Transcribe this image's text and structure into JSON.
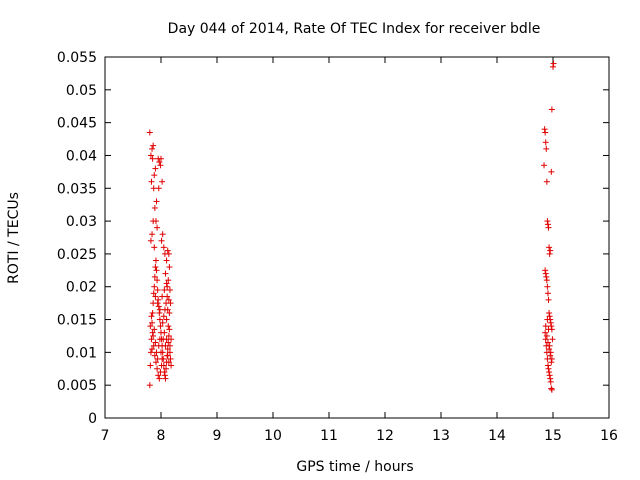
{
  "chart_data": {
    "type": "scatter",
    "title": "Day 044 of 2014, Rate Of TEC Index for receiver bdle",
    "xlabel": "GPS time / hours",
    "ylabel": "ROTI / TECUs",
    "xlim": [
      7,
      16
    ],
    "ylim": [
      0,
      0.055
    ],
    "xticks": [
      "7",
      "8",
      "9",
      "10",
      "11",
      "12",
      "13",
      "14",
      "15",
      "16"
    ],
    "yticks": [
      "0",
      "0.005",
      "0.01",
      "0.015",
      "0.02",
      "0.025",
      "0.03",
      "0.035",
      "0.04",
      "0.045",
      "0.05",
      "0.055"
    ],
    "grid": false,
    "marker": "+",
    "color": "#e00000",
    "series": [
      {
        "name": "ROTI",
        "points": [
          [
            7.8,
            0.0435
          ],
          [
            7.82,
            0.04
          ],
          [
            7.84,
            0.041
          ],
          [
            7.86,
            0.0415
          ],
          [
            7.85,
            0.0395
          ],
          [
            7.83,
            0.036
          ],
          [
            7.88,
            0.037
          ],
          [
            7.9,
            0.038
          ],
          [
            7.87,
            0.035
          ],
          [
            7.92,
            0.033
          ],
          [
            7.89,
            0.032
          ],
          [
            7.91,
            0.03
          ],
          [
            7.86,
            0.03
          ],
          [
            7.84,
            0.028
          ],
          [
            7.82,
            0.027
          ],
          [
            7.88,
            0.026
          ],
          [
            7.93,
            0.029
          ],
          [
            7.95,
            0.0395
          ],
          [
            7.97,
            0.039
          ],
          [
            7.99,
            0.0385
          ],
          [
            8.0,
            0.0395
          ],
          [
            8.02,
            0.036
          ],
          [
            7.96,
            0.035
          ],
          [
            8.01,
            0.027
          ],
          [
            8.03,
            0.028
          ],
          [
            8.05,
            0.026
          ],
          [
            8.07,
            0.025
          ],
          [
            8.1,
            0.024
          ],
          [
            8.12,
            0.0255
          ],
          [
            8.14,
            0.025
          ],
          [
            8.15,
            0.023
          ],
          [
            8.08,
            0.022
          ],
          [
            8.13,
            0.021
          ],
          [
            8.11,
            0.02
          ],
          [
            8.16,
            0.0195
          ],
          [
            8.14,
            0.018
          ],
          [
            8.17,
            0.0175
          ],
          [
            8.12,
            0.0165
          ],
          [
            8.15,
            0.016
          ],
          [
            8.1,
            0.015
          ],
          [
            7.8,
            0.005
          ],
          [
            7.81,
            0.008
          ],
          [
            7.82,
            0.01
          ],
          [
            7.83,
            0.012
          ],
          [
            7.84,
            0.0145
          ],
          [
            7.85,
            0.016
          ],
          [
            7.86,
            0.0175
          ],
          [
            7.87,
            0.019
          ],
          [
            7.88,
            0.02
          ],
          [
            7.89,
            0.0215
          ],
          [
            7.9,
            0.023
          ],
          [
            7.91,
            0.024
          ],
          [
            7.92,
            0.0225
          ],
          [
            7.93,
            0.021
          ],
          [
            7.94,
            0.0195
          ],
          [
            7.95,
            0.018
          ],
          [
            7.96,
            0.017
          ],
          [
            7.97,
            0.016
          ],
          [
            7.98,
            0.015
          ],
          [
            7.99,
            0.014
          ],
          [
            8.0,
            0.013
          ],
          [
            8.01,
            0.012
          ],
          [
            8.02,
            0.011
          ],
          [
            8.03,
            0.01
          ],
          [
            8.04,
            0.009
          ],
          [
            8.05,
            0.008
          ],
          [
            8.06,
            0.007
          ],
          [
            8.07,
            0.0065
          ],
          [
            8.08,
            0.006
          ],
          [
            8.09,
            0.0075
          ],
          [
            8.1,
            0.0085
          ],
          [
            8.11,
            0.0095
          ],
          [
            8.12,
            0.0105
          ],
          [
            8.13,
            0.0115
          ],
          [
            8.14,
            0.0125
          ],
          [
            8.15,
            0.0135
          ],
          [
            8.16,
            0.01
          ],
          [
            8.17,
            0.009
          ],
          [
            8.18,
            0.008
          ],
          [
            7.81,
            0.014
          ],
          [
            7.83,
            0.0155
          ],
          [
            7.85,
            0.013
          ],
          [
            7.87,
            0.011
          ],
          [
            7.89,
            0.0095
          ],
          [
            7.91,
            0.0085
          ],
          [
            7.93,
            0.0075
          ],
          [
            7.95,
            0.0065
          ],
          [
            7.97,
            0.006
          ],
          [
            7.99,
            0.007
          ],
          [
            8.01,
            0.008
          ],
          [
            8.03,
            0.0145
          ],
          [
            8.05,
            0.0155
          ],
          [
            8.07,
            0.0165
          ],
          [
            8.09,
            0.0175
          ],
          [
            8.11,
            0.0185
          ],
          [
            8.13,
            0.014
          ],
          [
            7.84,
            0.0105
          ],
          [
            7.86,
            0.0125
          ],
          [
            7.88,
            0.0135
          ],
          [
            7.9,
            0.0115
          ],
          [
            7.92,
            0.01
          ],
          [
            7.94,
            0.009
          ],
          [
            7.96,
            0.011
          ],
          [
            7.98,
            0.012
          ],
          [
            8.0,
            0.01
          ],
          [
            8.02,
            0.009
          ],
          [
            8.04,
            0.012
          ],
          [
            8.06,
            0.013
          ],
          [
            8.08,
            0.011
          ],
          [
            8.1,
            0.012
          ],
          [
            8.12,
            0.0095
          ],
          [
            8.14,
            0.0085
          ],
          [
            8.16,
            0.011
          ],
          [
            8.18,
            0.012
          ],
          [
            7.9,
            0.0185
          ],
          [
            7.94,
            0.0175
          ],
          [
            7.98,
            0.0165
          ],
          [
            8.02,
            0.0185
          ],
          [
            8.06,
            0.0195
          ],
          [
            8.1,
            0.0205
          ],
          [
            14.85,
            0.044
          ],
          [
            14.86,
            0.0435
          ],
          [
            14.87,
            0.042
          ],
          [
            14.88,
            0.041
          ],
          [
            14.84,
            0.0385
          ],
          [
            14.89,
            0.036
          ],
          [
            14.9,
            0.03
          ],
          [
            14.91,
            0.0295
          ],
          [
            14.92,
            0.029
          ],
          [
            14.93,
            0.026
          ],
          [
            14.94,
            0.025
          ],
          [
            14.95,
            0.0255
          ],
          [
            14.97,
            0.0375
          ],
          [
            14.98,
            0.047
          ],
          [
            15.0,
            0.0535
          ],
          [
            15.01,
            0.054
          ],
          [
            14.86,
            0.0225
          ],
          [
            14.87,
            0.022
          ],
          [
            14.88,
            0.0215
          ],
          [
            14.89,
            0.021
          ],
          [
            14.9,
            0.02
          ],
          [
            14.91,
            0.019
          ],
          [
            14.92,
            0.018
          ],
          [
            14.93,
            0.016
          ],
          [
            14.94,
            0.0155
          ],
          [
            14.95,
            0.015
          ],
          [
            14.96,
            0.0145
          ],
          [
            14.97,
            0.014
          ],
          [
            14.98,
            0.0135
          ],
          [
            14.86,
            0.013
          ],
          [
            14.87,
            0.012
          ],
          [
            14.88,
            0.011
          ],
          [
            14.89,
            0.01
          ],
          [
            14.9,
            0.009
          ],
          [
            14.91,
            0.008
          ],
          [
            14.92,
            0.0075
          ],
          [
            14.93,
            0.007
          ],
          [
            14.94,
            0.0065
          ],
          [
            14.95,
            0.006
          ],
          [
            14.96,
            0.0055
          ],
          [
            14.97,
            0.0045
          ],
          [
            14.98,
            0.0043
          ],
          [
            14.87,
            0.014
          ],
          [
            14.89,
            0.0125
          ],
          [
            14.91,
            0.0115
          ],
          [
            14.93,
            0.0105
          ],
          [
            14.95,
            0.0095
          ],
          [
            14.97,
            0.0085
          ],
          [
            14.99,
            0.012
          ],
          [
            14.9,
            0.015
          ],
          [
            14.92,
            0.0135
          ],
          [
            14.94,
            0.011
          ],
          [
            14.96,
            0.01
          ],
          [
            14.98,
            0.009
          ]
        ]
      }
    ]
  }
}
